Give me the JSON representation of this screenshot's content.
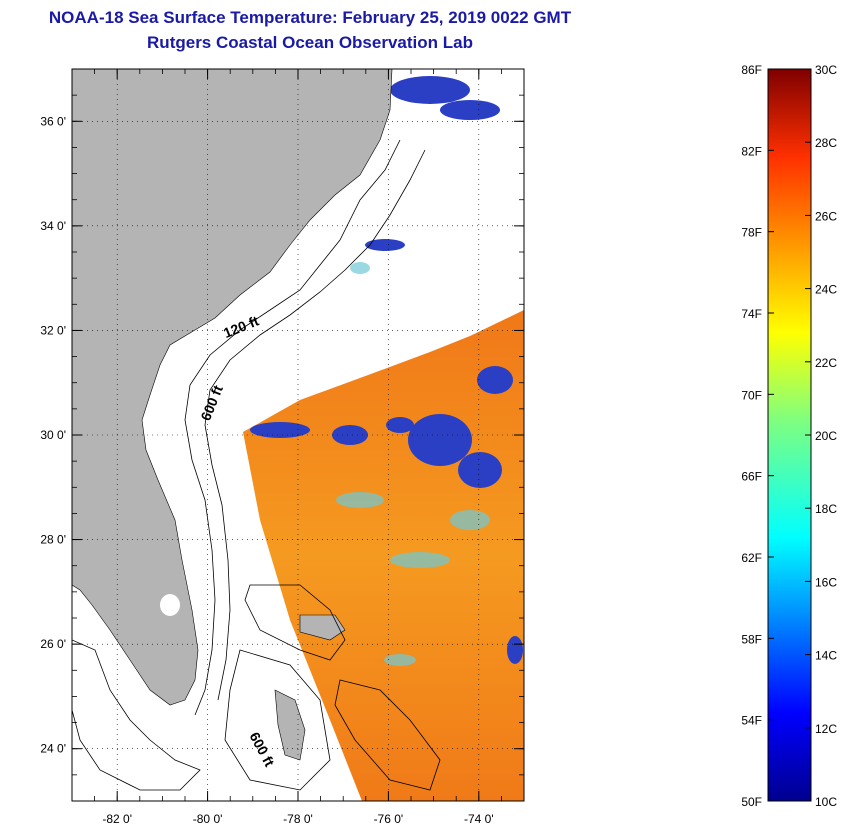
{
  "header": {
    "title": "NOAA-18 Sea Surface Temperature:  February 25, 2019 0022 GMT",
    "subtitle": "Rutgers Coastal Ocean Observation Lab"
  },
  "map": {
    "lat_ticks": [
      "36 0'",
      "34 0'",
      "32 0'",
      "30 0'",
      "28 0'",
      "26 0'",
      "24 0'"
    ],
    "lat_values": [
      36,
      34,
      32,
      30,
      28,
      26,
      24
    ],
    "lon_ticks": [
      "-82 0'",
      "-80 0'",
      "-78 0'",
      "-76 0'",
      "-74 0'"
    ],
    "lon_values": [
      -82,
      -80,
      -78,
      -76,
      -74
    ],
    "lat_range": [
      23,
      37
    ],
    "lon_range": [
      -83,
      -73
    ],
    "contour_labels": [
      "120 ft",
      "600 ft",
      "600 ft"
    ],
    "land_color": "#b4b4b4",
    "grid": "dotted"
  },
  "colorbar": {
    "f_labels": [
      "86F",
      "82F",
      "78F",
      "74F",
      "70F",
      "66F",
      "62F",
      "58F",
      "54F",
      "50F"
    ],
    "c_labels": [
      "30C",
      "28C",
      "26C",
      "24C",
      "22C",
      "20C",
      "18C",
      "16C",
      "14C",
      "12C",
      "10C"
    ],
    "range_c": [
      10,
      30
    ]
  }
}
